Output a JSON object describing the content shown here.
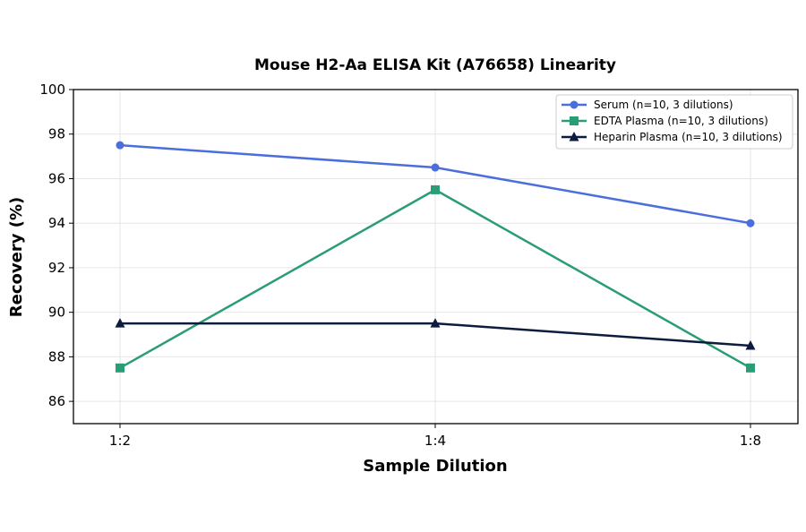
{
  "chart_data": {
    "type": "line",
    "title": "Mouse H2-Aa ELISA Kit (A76658) Linearity",
    "xlabel": "Sample Dilution",
    "ylabel": "Recovery (%)",
    "categories": [
      "1:2",
      "1:4",
      "1:8"
    ],
    "ylim": [
      85,
      100
    ],
    "yticks": [
      86,
      88,
      90,
      92,
      94,
      96,
      98,
      100
    ],
    "grid": true,
    "legend_position": "top-right",
    "series": [
      {
        "name": "Serum (n=10, 3 dilutions)",
        "values": [
          97.5,
          96.5,
          94.0
        ],
        "color": "#4a6fdc",
        "marker": "circle"
      },
      {
        "name": "EDTA Plasma (n=10, 3 dilutions)",
        "values": [
          87.5,
          95.5,
          87.5
        ],
        "color": "#2a9d74",
        "marker": "square"
      },
      {
        "name": "Heparin Plasma (n=10, 3 dilutions)",
        "values": [
          89.5,
          89.5,
          88.5
        ],
        "color": "#0d1b3e",
        "marker": "triangle"
      }
    ]
  }
}
